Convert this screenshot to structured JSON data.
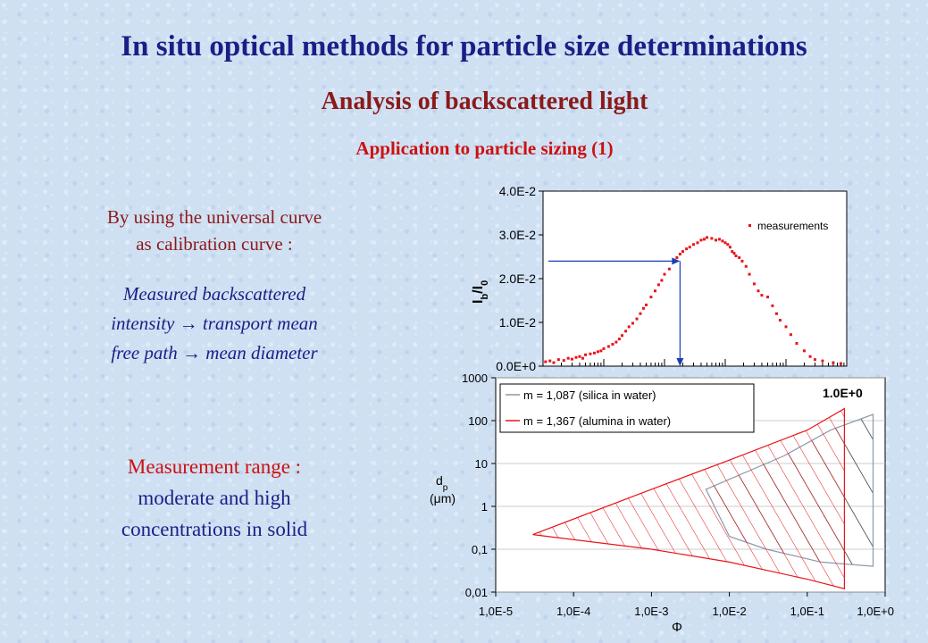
{
  "header": {
    "title": "In situ optical methods for particle size determinations",
    "subtitle": "Analysis of backscattered light",
    "section": "Application to particle sizing (1)"
  },
  "left_text": {
    "calibration_l1": "By using the universal curve",
    "calibration_l2": "as calibration curve :",
    "chain_l1": "Measured backscattered",
    "chain_l2_a": "intensity",
    "chain_l2_b": "transport mean",
    "chain_l3_a": "free path",
    "chain_l3_b": "mean diameter",
    "arrow_glyph": "→",
    "range_label": "Measurement range :",
    "range_l2": "moderate and high",
    "range_l3": "concentrations in solid"
  },
  "chart_data": [
    {
      "type": "scatter",
      "ylabel": "I_b/I_0",
      "ylabel_main": "I",
      "ylabel_sub1": "b",
      "ylabel_sep": "/I",
      "ylabel_sub2": "0",
      "ylim": [
        0,
        0.04
      ],
      "yticks": [
        "0.0E+0",
        "1.0E-2",
        "2.0E-2",
        "3.0E-2",
        "4.0E-2"
      ],
      "x_scale": "log",
      "xlim": [
        1e-05,
        1
      ],
      "legend": "measurements",
      "legend_position": "top-right",
      "series": [
        {
          "name": "measurements",
          "color": "#e8141b",
          "points": [
            [
              1.1e-05,
              0.001
            ],
            [
              1.3e-05,
              0.0012
            ],
            [
              1.5e-05,
              0.0008
            ],
            [
              1.8e-05,
              0.0015
            ],
            [
              2.2e-05,
              0.0013
            ],
            [
              2.6e-05,
              0.0018
            ],
            [
              3e-05,
              0.0016
            ],
            [
              3.5e-05,
              0.002
            ],
            [
              4e-05,
              0.0022
            ],
            [
              4.5e-05,
              0.0018
            ],
            [
              5e-05,
              0.0026
            ],
            [
              6e-05,
              0.0028
            ],
            [
              7e-05,
              0.003
            ],
            [
              8e-05,
              0.0033
            ],
            [
              9e-05,
              0.0035
            ],
            [
              0.0001,
              0.004
            ],
            [
              0.00012,
              0.0045
            ],
            [
              0.00014,
              0.005
            ],
            [
              0.00016,
              0.0055
            ],
            [
              0.00018,
              0.0062
            ],
            [
              0.0002,
              0.007
            ],
            [
              0.00023,
              0.008
            ],
            [
              0.00026,
              0.009
            ],
            [
              0.0003,
              0.0098
            ],
            [
              0.00035,
              0.0108
            ],
            [
              0.0004,
              0.012
            ],
            [
              0.00045,
              0.0132
            ],
            [
              0.0005,
              0.014
            ],
            [
              0.0006,
              0.0158
            ],
            [
              0.0007,
              0.0172
            ],
            [
              0.0008,
              0.0186
            ],
            [
              0.0009,
              0.0196
            ],
            [
              0.001,
              0.021
            ],
            [
              0.0012,
              0.0222
            ],
            [
              0.0014,
              0.0238
            ],
            [
              0.0016,
              0.0248
            ],
            [
              0.0018,
              0.0256
            ],
            [
              0.002,
              0.0262
            ],
            [
              0.0023,
              0.0268
            ],
            [
              0.0026,
              0.0272
            ],
            [
              0.003,
              0.0278
            ],
            [
              0.0035,
              0.0282
            ],
            [
              0.004,
              0.0288
            ],
            [
              0.0045,
              0.029
            ],
            [
              0.005,
              0.0294
            ],
            [
              0.006,
              0.0292
            ],
            [
              0.007,
              0.0288
            ],
            [
              0.008,
              0.029
            ],
            [
              0.009,
              0.0286
            ],
            [
              0.01,
              0.0282
            ],
            [
              0.011,
              0.0278
            ],
            [
              0.012,
              0.0272
            ],
            [
              0.013,
              0.0262
            ],
            [
              0.014,
              0.0258
            ],
            [
              0.015,
              0.0252
            ],
            [
              0.017,
              0.0248
            ],
            [
              0.019,
              0.024
            ],
            [
              0.022,
              0.0228
            ],
            [
              0.025,
              0.021
            ],
            [
              0.03,
              0.0188
            ],
            [
              0.035,
              0.0172
            ],
            [
              0.04,
              0.0162
            ],
            [
              0.05,
              0.0158
            ],
            [
              0.06,
              0.0138
            ],
            [
              0.07,
              0.012
            ],
            [
              0.08,
              0.0105
            ],
            [
              0.1,
              0.009
            ],
            [
              0.12,
              0.0072
            ],
            [
              0.15,
              0.0052
            ],
            [
              0.2,
              0.0035
            ],
            [
              0.25,
              0.0022
            ],
            [
              0.3,
              0.0015
            ],
            [
              0.4,
              0.0012
            ],
            [
              0.6,
              0.0008
            ],
            [
              0.8,
              0.0006
            ]
          ]
        }
      ],
      "annotation": {
        "arrow_intensity": 0.024,
        "arrow_phi": 0.0018
      }
    },
    {
      "type": "area",
      "xlabel": "Φ",
      "ylabel": "dp (μm)",
      "ylabel_l1": "d",
      "ylabel_sub": "p",
      "ylabel_l2": "(μm)",
      "x_scale": "log",
      "y_scale": "log",
      "xlim": [
        1e-05,
        1
      ],
      "ylim": [
        0.01,
        1000
      ],
      "xticks": [
        "1,0E-5",
        "1,0E-4",
        "1,0E-3",
        "1,0E-2",
        "1,0E-1",
        "1,0E+0"
      ],
      "yticks": [
        "0,01",
        "0,1",
        "1",
        "10",
        "100",
        "1000"
      ],
      "corner_label": "1.0E+0",
      "legend_position": "top-left",
      "series": [
        {
          "name": "m = 1,087 (silica in water)",
          "color": "#8a9aa8",
          "polygon": [
            [
              0.005,
              2.5
            ],
            [
              0.05,
              15
            ],
            [
              0.2,
              60
            ],
            [
              0.7,
              140
            ],
            [
              0.7,
              0.04
            ],
            [
              0.15,
              0.05
            ],
            [
              0.03,
              0.1
            ],
            [
              0.01,
              0.2
            ]
          ]
        },
        {
          "name": "m = 1,367 (alumina in water)",
          "color": "#e8141b",
          "polygon": [
            [
              3e-05,
              0.22
            ],
            [
              0.001,
              2.5
            ],
            [
              0.01,
              12
            ],
            [
              0.1,
              60
            ],
            [
              0.3,
              190
            ],
            [
              0.3,
              0.012
            ],
            [
              0.1,
              0.02
            ],
            [
              0.01,
              0.05
            ],
            [
              0.001,
              0.1
            ]
          ]
        }
      ]
    }
  ]
}
